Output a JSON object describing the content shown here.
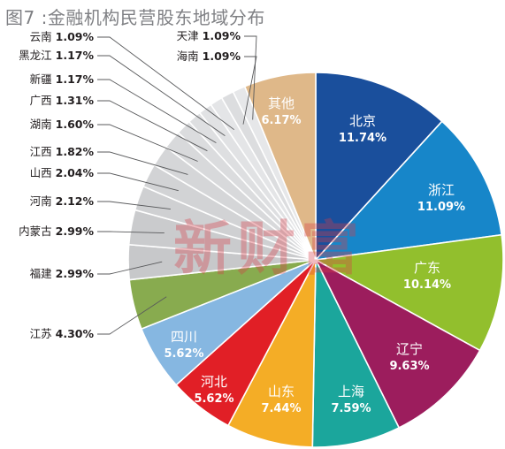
{
  "title": "图7 :金融机构民营股东地域分布",
  "watermark": "新财富",
  "chart_data": {
    "type": "pie",
    "title": "图7 :金融机构民营股东地域分布",
    "start": "12 o'clock",
    "direction": "clockwise",
    "slices": [
      {
        "name": "北京",
        "value": 11.74,
        "label": "11.74%",
        "color": "#1a4f9c",
        "label_position": "inside"
      },
      {
        "name": "浙江",
        "value": 11.09,
        "label": "11.09%",
        "color": "#1786c9",
        "label_position": "inside"
      },
      {
        "name": "广东",
        "value": 10.14,
        "label": "10.14%",
        "color": "#92bf2d",
        "label_position": "inside"
      },
      {
        "name": "辽宁",
        "value": 9.63,
        "label": "9.63%",
        "color": "#9c1d5d",
        "label_position": "inside"
      },
      {
        "name": "上海",
        "value": 7.59,
        "label": "7.59%",
        "color": "#1ba69c",
        "label_position": "inside"
      },
      {
        "name": "山东",
        "value": 7.44,
        "label": "7.44%",
        "color": "#f4ad26",
        "label_position": "inside"
      },
      {
        "name": "河北",
        "value": 5.62,
        "label": "5.62%",
        "color": "#e11f26",
        "label_position": "inside"
      },
      {
        "name": "四川",
        "value": 5.62,
        "label": "5.62%",
        "color": "#86b7e1",
        "label_position": "inside"
      },
      {
        "name": "江苏",
        "value": 4.3,
        "label": "4.30%",
        "color": "#88ab4f",
        "label_position": "outside"
      },
      {
        "name": "福建",
        "value": 2.99,
        "label": "2.99%",
        "color": "#c7c8ca",
        "label_position": "outside"
      },
      {
        "name": "内蒙古",
        "value": 2.99,
        "label": "2.99%",
        "color": "#cacbcd",
        "label_position": "outside"
      },
      {
        "name": "河南",
        "value": 2.12,
        "label": "2.12%",
        "color": "#cfd0d2",
        "label_position": "outside"
      },
      {
        "name": "山西",
        "value": 2.04,
        "label": "2.04%",
        "color": "#d2d3d5",
        "label_position": "outside"
      },
      {
        "name": "江西",
        "value": 1.82,
        "label": "1.82%",
        "color": "#d5d6d8",
        "label_position": "outside"
      },
      {
        "name": "湖南",
        "value": 1.6,
        "label": "1.60%",
        "color": "#d8d9db",
        "label_position": "outside"
      },
      {
        "name": "广西",
        "value": 1.31,
        "label": "1.31%",
        "color": "#dbdcde",
        "label_position": "outside"
      },
      {
        "name": "新疆",
        "value": 1.17,
        "label": "1.17%",
        "color": "#dedfe1",
        "label_position": "outside"
      },
      {
        "name": "黑龙江",
        "value": 1.17,
        "label": "1.17%",
        "color": "#e1e2e4",
        "label_position": "outside"
      },
      {
        "name": "云南",
        "value": 1.09,
        "label": "1.09%",
        "color": "#e4e5e7",
        "label_position": "outside"
      },
      {
        "name": "海南",
        "value": 1.09,
        "label": "1.09%",
        "color": "#dcdddf",
        "label_position": "outside"
      },
      {
        "name": "天津",
        "value": 1.09,
        "label": "1.09%",
        "color": "#e6e7e9",
        "label_position": "outside"
      },
      {
        "name": "其他",
        "value": 6.17,
        "label": "6.17%",
        "color": "#dfb889",
        "label_position": "inside"
      }
    ]
  }
}
